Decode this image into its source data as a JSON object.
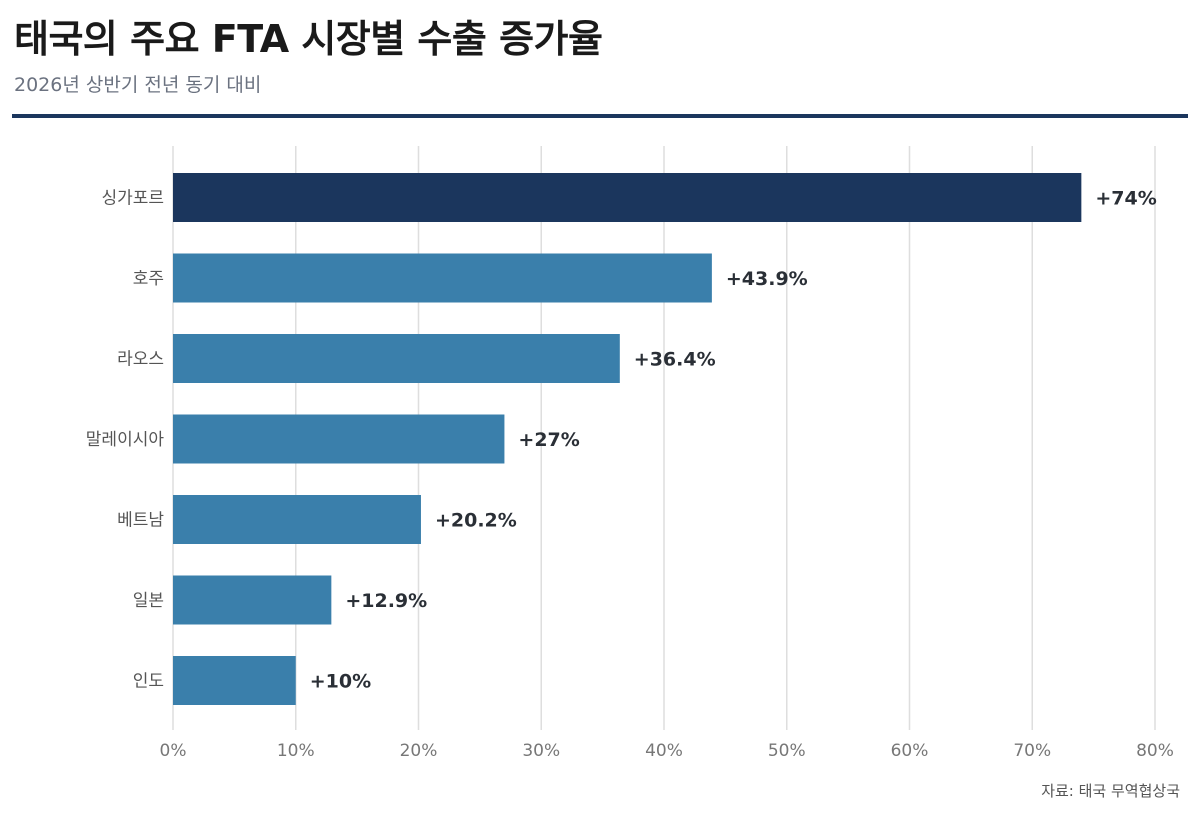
{
  "header": {
    "title": "태국의 주요 FTA 시장별 수출 증가율",
    "subtitle": "2026년 상반기 전년 동기 대비"
  },
  "footer": {
    "source": "자료: 태국 무역협상국"
  },
  "colors": {
    "highlight": "#1b365d",
    "bar": "#3a7fab",
    "grid": "#dedede",
    "accent_rule": "#1b365d"
  },
  "chart_data": {
    "type": "bar",
    "orientation": "horizontal",
    "categories": [
      "싱가포르",
      "호주",
      "라오스",
      "말레이시아",
      "베트남",
      "일본",
      "인도"
    ],
    "values": [
      74,
      43.9,
      36.4,
      27,
      20.2,
      12.9,
      10
    ],
    "value_labels": [
      "+74%",
      "+43.9%",
      "+36.4%",
      "+27%",
      "+20.2%",
      "+12.9%",
      "+10%"
    ],
    "highlight_index": 0,
    "xlim": [
      0,
      80
    ],
    "xticks": [
      0,
      10,
      20,
      30,
      40,
      50,
      60,
      70,
      80
    ],
    "xtick_labels": [
      "0%",
      "10%",
      "20%",
      "30%",
      "40%",
      "50%",
      "60%",
      "70%",
      "80%"
    ],
    "grid": "vertical",
    "legend": "none"
  }
}
